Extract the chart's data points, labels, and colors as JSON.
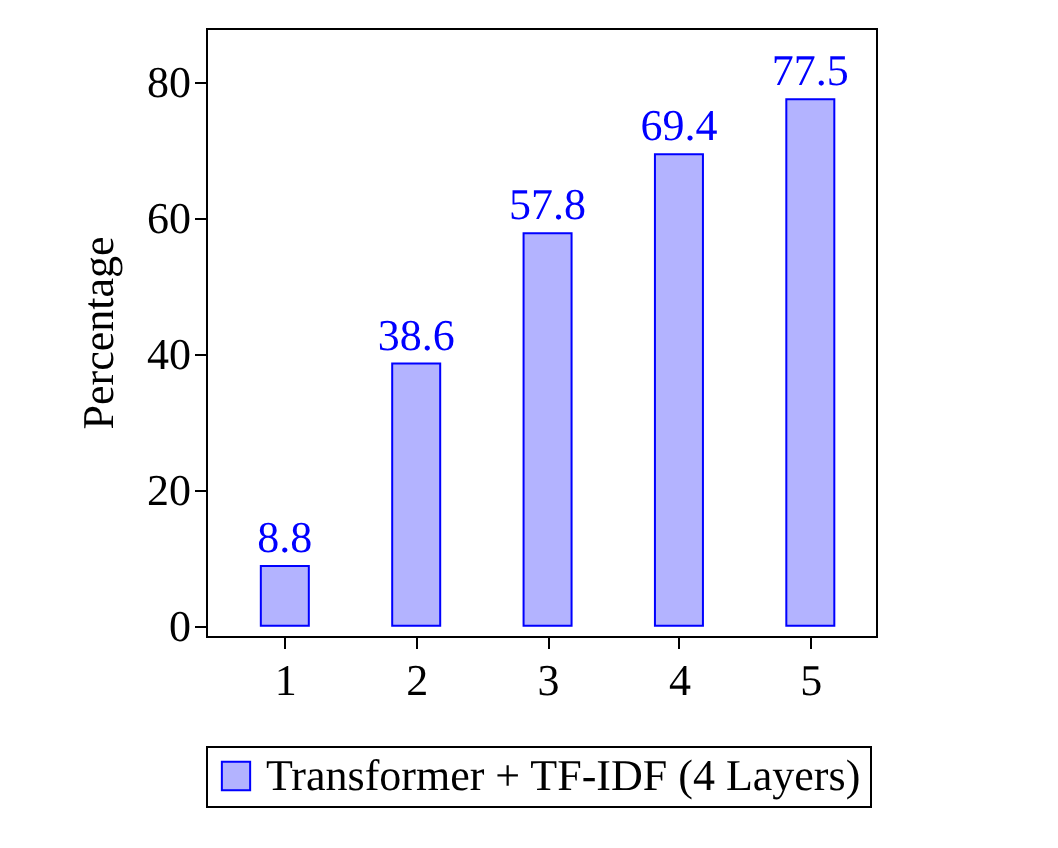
{
  "chart_data": {
    "type": "bar",
    "ylabel": "Percentage",
    "x": [
      1,
      2,
      3,
      4,
      5
    ],
    "series": [
      {
        "name": "Transformer + TF-IDF (4 Layers)",
        "color": "#b3b3ff",
        "values": [
          8.8,
          38.6,
          57.8,
          69.4,
          77.5
        ]
      }
    ],
    "xlim": [
      0.4,
      5.5
    ],
    "xticks": [
      1,
      2,
      3,
      4,
      5
    ],
    "ylim": [
      -1.5,
      88
    ],
    "yticks": [
      0,
      20,
      40,
      60,
      80
    ],
    "data_labels": true,
    "legend": "bottom",
    "grid": false
  }
}
